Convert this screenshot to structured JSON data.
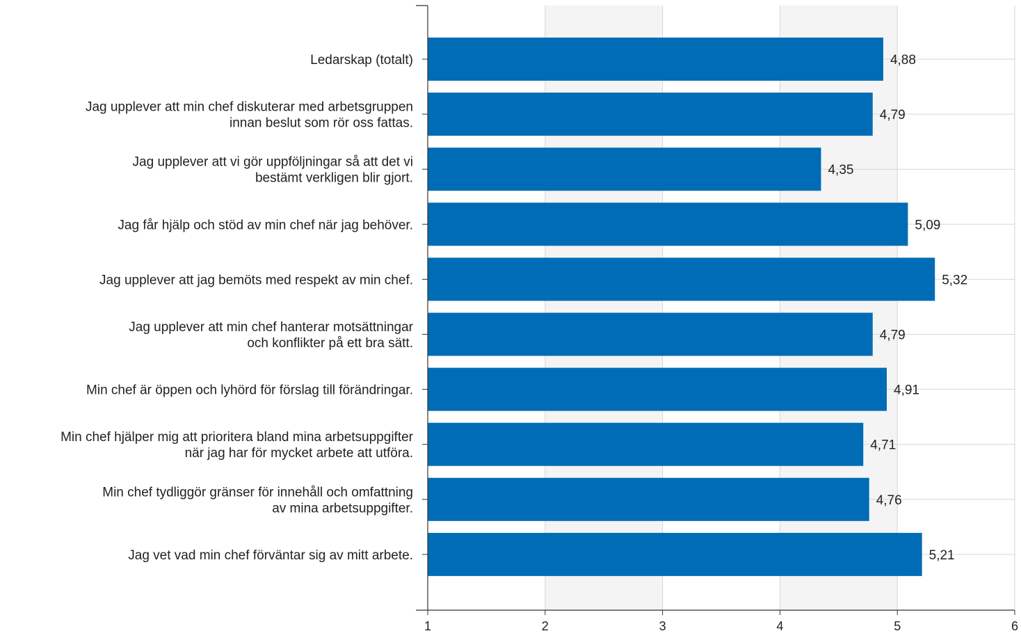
{
  "chart_data": {
    "type": "bar",
    "orientation": "horizontal",
    "categories": [
      [
        "Ledarskap (totalt)"
      ],
      [
        "Jag upplever att min chef diskuterar med arbetsgruppen",
        "innan beslut som rör oss fattas."
      ],
      [
        "Jag upplever att vi gör uppföljningar så att det vi",
        "bestämt verkligen blir gjort."
      ],
      [
        "Jag får hjälp och stöd av min chef när jag behöver."
      ],
      [
        "Jag upplever att jag bemöts med respekt av min chef."
      ],
      [
        "Jag upplever att min chef hanterar motsättningar",
        "och konflikter på ett bra sätt."
      ],
      [
        "Min chef är öppen och lyhörd för förslag till förändringar."
      ],
      [
        "Min chef hjälper mig att prioritera bland mina arbetsuppgifter",
        "när jag har för mycket arbete att utföra."
      ],
      [
        "Min chef tydliggör gränser för innehåll och omfattning",
        "av mina arbetsuppgifter."
      ],
      [
        "Jag vet vad min chef förväntar sig av mitt arbete."
      ]
    ],
    "values": [
      4.88,
      4.79,
      4.35,
      5.09,
      5.32,
      4.79,
      4.91,
      4.71,
      4.76,
      5.21
    ],
    "value_labels": [
      "4,88",
      "4,79",
      "4,35",
      "5,09",
      "5,32",
      "4,79",
      "4,91",
      "4,71",
      "4,76",
      "5,21"
    ],
    "xlim": [
      1,
      6
    ],
    "x_ticks": [
      "1",
      "2",
      "3",
      "4",
      "5",
      "6"
    ],
    "title": "",
    "xlabel": "",
    "ylabel": "",
    "grid": true,
    "alternating_bands": true,
    "bar_color": "#006cb6",
    "band_color": "#f4f4f4",
    "grid_color": "#d6d6d6",
    "axis_color": "#333333"
  }
}
